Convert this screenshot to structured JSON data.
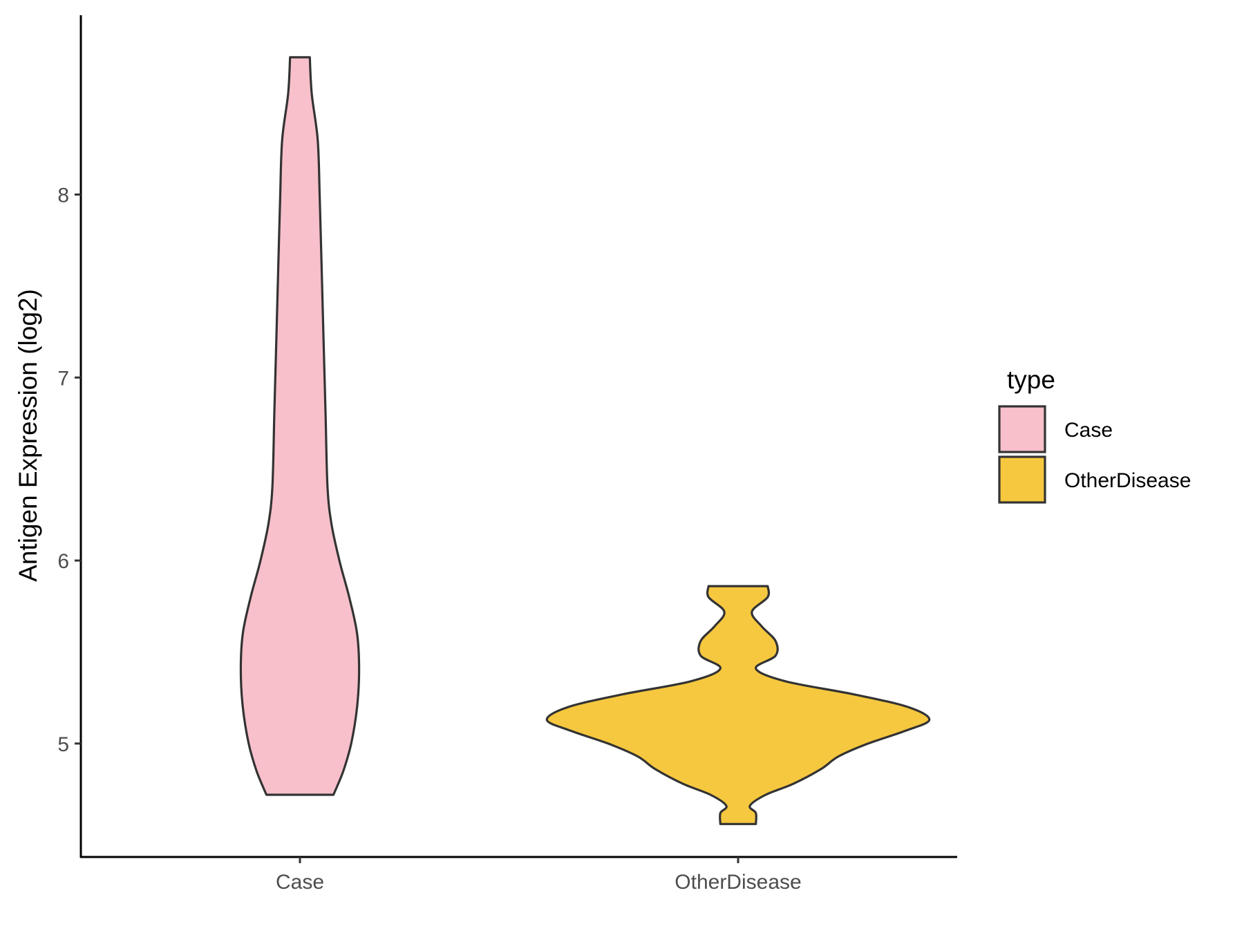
{
  "chart_data": {
    "type": "violin",
    "title": "",
    "xlabel": "",
    "ylabel": "Antigen Expression (log2)",
    "ylim": [
      4.38,
      8.98
    ],
    "yticks": [
      5,
      6,
      7,
      8
    ],
    "categories": [
      "Case",
      "OtherDisease"
    ],
    "legend": {
      "title": "type",
      "position": "right",
      "entries": [
        {
          "label": "Case",
          "color": "#F7C0CB"
        },
        {
          "label": "OtherDisease",
          "color": "#F6C83F"
        }
      ]
    },
    "grid": false,
    "series": [
      {
        "category": "Case",
        "fill": "#F7C0CB",
        "min": 4.72,
        "max": 8.75,
        "density_profile": [
          [
            4.72,
            0.17
          ],
          [
            4.85,
            0.22
          ],
          [
            5.0,
            0.26
          ],
          [
            5.2,
            0.29
          ],
          [
            5.4,
            0.3
          ],
          [
            5.6,
            0.29
          ],
          [
            5.8,
            0.25
          ],
          [
            6.0,
            0.2
          ],
          [
            6.2,
            0.16
          ],
          [
            6.4,
            0.14
          ],
          [
            6.8,
            0.13
          ],
          [
            7.2,
            0.12
          ],
          [
            7.6,
            0.11
          ],
          [
            8.0,
            0.1
          ],
          [
            8.3,
            0.09
          ],
          [
            8.55,
            0.06
          ],
          [
            8.75,
            0.05
          ]
        ]
      },
      {
        "category": "OtherDisease",
        "fill": "#F6C83F",
        "min": 4.56,
        "max": 5.86,
        "density_profile": [
          [
            4.56,
            0.09
          ],
          [
            4.62,
            0.09
          ],
          [
            4.66,
            0.06
          ],
          [
            4.72,
            0.14
          ],
          [
            4.78,
            0.28
          ],
          [
            4.86,
            0.42
          ],
          [
            4.93,
            0.51
          ],
          [
            5.0,
            0.66
          ],
          [
            5.07,
            0.85
          ],
          [
            5.13,
            0.97
          ],
          [
            5.2,
            0.86
          ],
          [
            5.27,
            0.58
          ],
          [
            5.34,
            0.24
          ],
          [
            5.41,
            0.09
          ],
          [
            5.48,
            0.19
          ],
          [
            5.56,
            0.19
          ],
          [
            5.64,
            0.12
          ],
          [
            5.72,
            0.07
          ],
          [
            5.8,
            0.15
          ],
          [
            5.86,
            0.15
          ]
        ]
      }
    ]
  }
}
